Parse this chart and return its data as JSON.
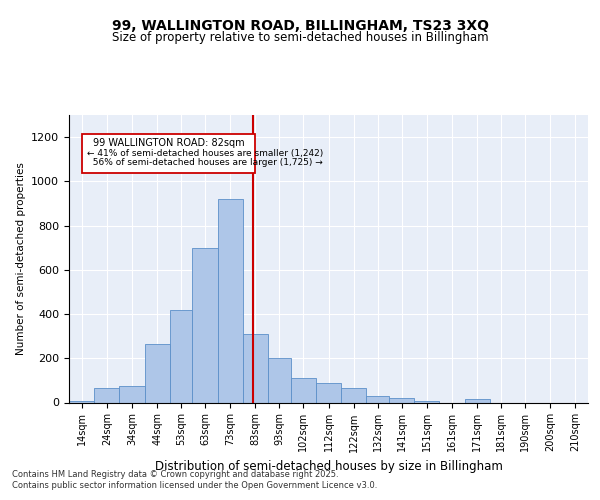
{
  "title": "99, WALLINGTON ROAD, BILLINGHAM, TS23 3XQ",
  "subtitle": "Size of property relative to semi-detached houses in Billingham",
  "xlabel": "Distribution of semi-detached houses by size in Billingham",
  "ylabel": "Number of semi-detached properties",
  "footnote1": "Contains HM Land Registry data © Crown copyright and database right 2025.",
  "footnote2": "Contains public sector information licensed under the Open Government Licence v3.0.",
  "property_size": 82,
  "property_label": "99 WALLINGTON ROAD: 82sqm",
  "pct_smaller": 41,
  "count_smaller": 1242,
  "pct_larger": 56,
  "count_larger": 1725,
  "bar_color": "#aec6e8",
  "bar_edge_color": "#5b8fc9",
  "vline_color": "#cc0000",
  "bg_color": "#e8eef8",
  "annotation_box_color": "#cc0000",
  "categories": [
    "14sqm",
    "24sqm",
    "34sqm",
    "44sqm",
    "53sqm",
    "63sqm",
    "73sqm",
    "83sqm",
    "93sqm",
    "102sqm",
    "112sqm",
    "122sqm",
    "132sqm",
    "141sqm",
    "151sqm",
    "161sqm",
    "171sqm",
    "181sqm",
    "190sqm",
    "200sqm",
    "210sqm"
  ],
  "bin_edges": [
    9,
    19,
    29,
    39,
    49,
    58,
    68,
    78,
    88,
    97,
    107,
    117,
    127,
    136,
    146,
    156,
    166,
    176,
    185,
    195,
    205,
    215
  ],
  "values": [
    5,
    65,
    75,
    265,
    420,
    700,
    920,
    310,
    200,
    110,
    90,
    65,
    30,
    20,
    5,
    0,
    15,
    0,
    0,
    0,
    0
  ],
  "ylim": [
    0,
    1300
  ],
  "yticks": [
    0,
    200,
    400,
    600,
    800,
    1000,
    1200
  ]
}
